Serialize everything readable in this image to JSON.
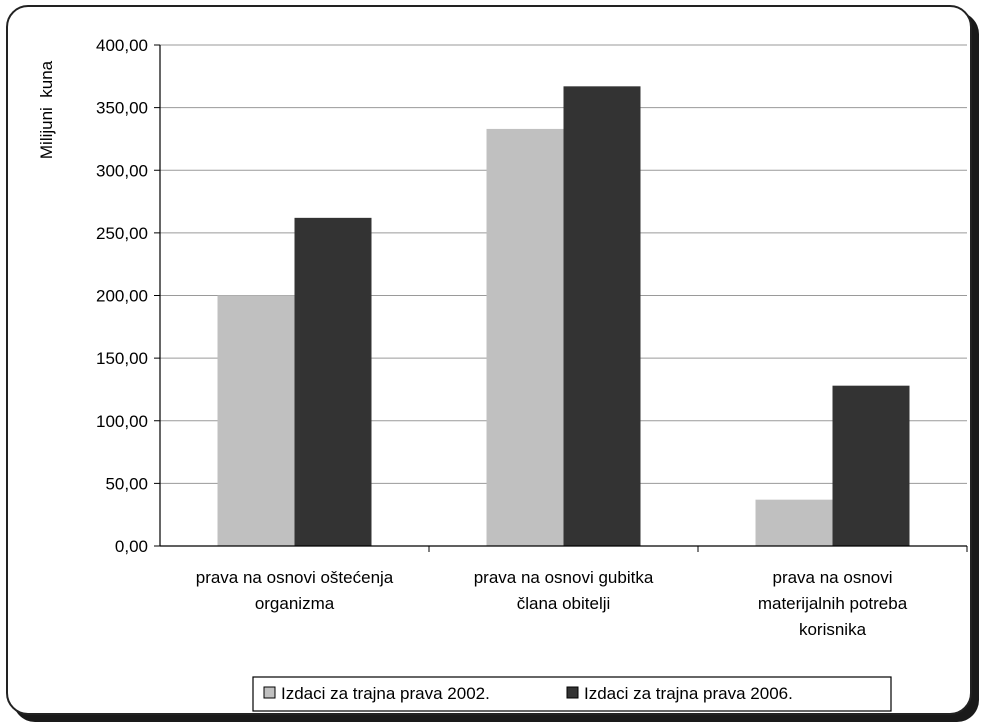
{
  "chart_data": {
    "type": "bar",
    "title": "",
    "ylabel": "Milijuni  kuna",
    "xlabel": "",
    "ylim": [
      0,
      400
    ],
    "yticks": [
      0,
      50,
      100,
      150,
      200,
      250,
      300,
      350,
      400
    ],
    "ytick_labels": [
      "0,00",
      "50,00",
      "100,00",
      "150,00",
      "200,00",
      "250,00",
      "300,00",
      "350,00",
      "400,00"
    ],
    "grid": true,
    "legend_position": "bottom",
    "categories": [
      [
        "prava na osnovi oštećenja",
        "organizma"
      ],
      [
        "prava na osnovi gubitka",
        "člana obitelji"
      ],
      [
        "prava na osnovi",
        "materijalnih potreba",
        "korisnika"
      ]
    ],
    "series": [
      {
        "name": "Izdaci za trajna prava 2002.",
        "color": "#c0c0c0",
        "values": [
          200,
          333,
          37
        ]
      },
      {
        "name": "Izdaci za trajna prava 2006.",
        "color": "#333333",
        "values": [
          262,
          367,
          128
        ]
      }
    ]
  }
}
